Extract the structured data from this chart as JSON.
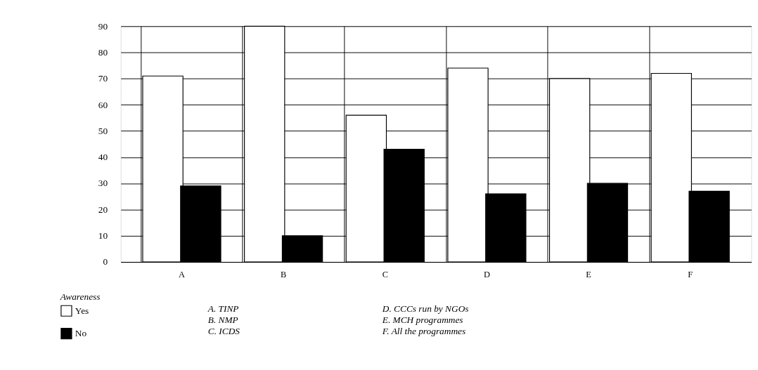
{
  "chart_data": {
    "type": "bar",
    "categories": [
      "A",
      "B",
      "C",
      "D",
      "E",
      "F"
    ],
    "series": [
      {
        "name": "Yes",
        "color": "#ffffff",
        "values": [
          71,
          90,
          56,
          74,
          70,
          72
        ]
      },
      {
        "name": "No",
        "color": "#000000",
        "values": [
          29,
          10,
          43,
          26,
          30,
          27
        ]
      }
    ],
    "ylim": [
      0,
      90
    ],
    "yticks": [
      0,
      10,
      20,
      30,
      40,
      50,
      60,
      70,
      80,
      90
    ],
    "grid": true,
    "legend": "bottom left",
    "legend_title": "Awareness",
    "annotations": [
      "A. TINP",
      "B. NMP",
      "C. ICDS",
      "D. CCCs run by NGOs",
      "E. MCH programmes",
      "F. All the programmes"
    ]
  }
}
